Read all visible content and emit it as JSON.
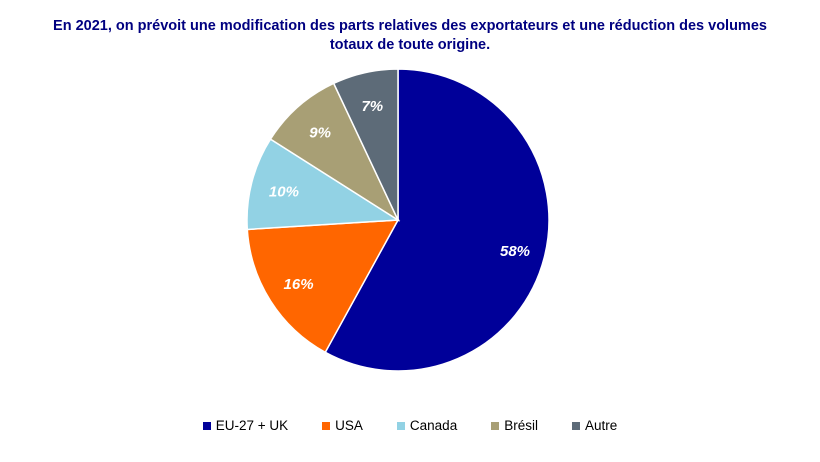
{
  "chart_data": {
    "type": "pie",
    "title": "En 2021, on prévoit une modification des parts relatives des exportateurs et une réduction des volumes totaux de toute origine.",
    "title_lines": [
      "En 2021, on prévoit une modification des parts relatives des exportateurs et une réduction des volumes",
      "totaux de toute origine."
    ],
    "start_angle": "top, clockwise",
    "legend_position": "bottom",
    "slices": [
      {
        "name": "EU-27 + UK",
        "value": 58,
        "label": "58%",
        "color": "#000099"
      },
      {
        "name": "USA",
        "value": 16,
        "label": "16%",
        "color": "#FF6600"
      },
      {
        "name": "Canada",
        "value": 10,
        "label": "10%",
        "color": "#92D2E4"
      },
      {
        "name": "Brésil",
        "value": 9,
        "label": "9%",
        "color": "#A89F75"
      },
      {
        "name": "Autre",
        "value": 7,
        "label": "7%",
        "color": "#5D6B78"
      }
    ]
  }
}
